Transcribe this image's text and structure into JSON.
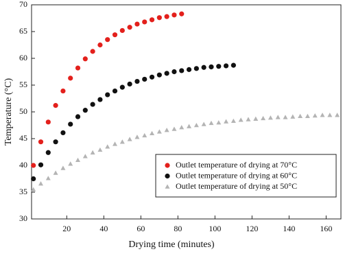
{
  "chart_data": {
    "type": "scatter",
    "x_label": "Drying time (minutes)",
    "y_label": "Temperature (°C)",
    "xlim": [
      1,
      168
    ],
    "xticks": [
      20,
      40,
      60,
      80,
      100,
      120,
      140,
      160
    ],
    "ylim": [
      30,
      70
    ],
    "yticks": [
      30,
      35,
      40,
      45,
      50,
      55,
      60,
      65,
      70
    ],
    "legend": "lower right",
    "series": [
      {
        "name": "Outlet temperature of drying at 70°C",
        "color": "#e3201c",
        "marker": "circle",
        "x": [
          2,
          6,
          10,
          14,
          18,
          22,
          26,
          30,
          34,
          38,
          42,
          46,
          50,
          54,
          58,
          62,
          66,
          70,
          74,
          78,
          82
        ],
        "values": [
          40.0,
          44.4,
          48.1,
          51.2,
          53.9,
          56.3,
          58.2,
          59.9,
          61.3,
          62.5,
          63.5,
          64.4,
          65.2,
          65.8,
          66.4,
          66.8,
          67.2,
          67.6,
          67.8,
          68.1,
          68.3
        ]
      },
      {
        "name": "Outlet temperature of drying at 60°C",
        "color": "#111111",
        "marker": "circle",
        "x": [
          2,
          6,
          10,
          14,
          18,
          22,
          26,
          30,
          34,
          38,
          42,
          46,
          50,
          54,
          58,
          62,
          66,
          70,
          74,
          78,
          82,
          86,
          90,
          94,
          98,
          102,
          106,
          110
        ],
        "values": [
          37.5,
          40.1,
          42.4,
          44.4,
          46.1,
          47.7,
          49.1,
          50.3,
          51.4,
          52.3,
          53.2,
          53.9,
          54.6,
          55.2,
          55.7,
          56.1,
          56.5,
          56.9,
          57.2,
          57.5,
          57.7,
          57.9,
          58.1,
          58.3,
          58.4,
          58.5,
          58.6,
          58.7
        ]
      },
      {
        "name": "Outlet temperature of drying at 50°C",
        "color": "#b4b4b4",
        "marker": "triangle",
        "x": [
          2,
          6,
          10,
          14,
          18,
          22,
          26,
          30,
          34,
          38,
          42,
          46,
          50,
          54,
          58,
          62,
          66,
          70,
          74,
          78,
          82,
          86,
          90,
          94,
          98,
          102,
          106,
          110,
          114,
          118,
          122,
          126,
          130,
          134,
          138,
          142,
          146,
          150,
          154,
          158,
          162,
          166
        ],
        "values": [
          35.5,
          36.6,
          37.6,
          38.6,
          39.5,
          40.3,
          41.0,
          41.7,
          42.4,
          42.9,
          43.5,
          44.0,
          44.4,
          44.9,
          45.3,
          45.6,
          46.0,
          46.3,
          46.6,
          46.8,
          47.1,
          47.3,
          47.5,
          47.7,
          47.9,
          48.0,
          48.2,
          48.3,
          48.5,
          48.6,
          48.7,
          48.8,
          48.9,
          49.0,
          49.0,
          49.1,
          49.2,
          49.2,
          49.3,
          49.4,
          49.4,
          49.4
        ]
      }
    ]
  }
}
